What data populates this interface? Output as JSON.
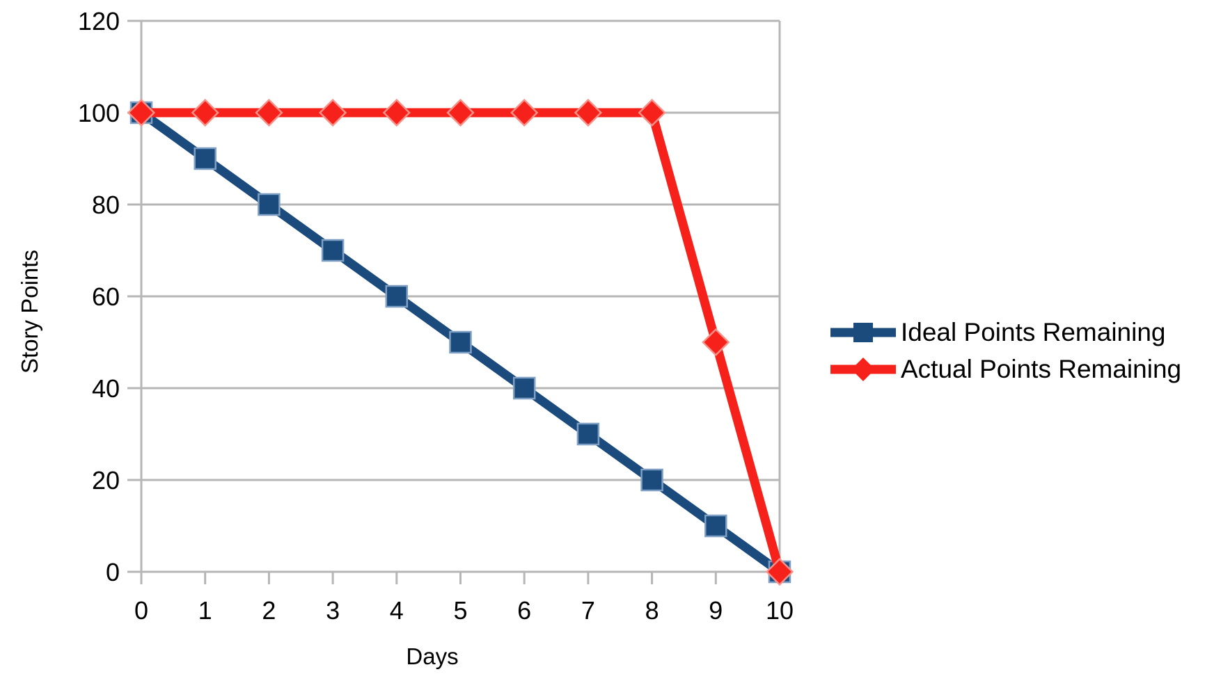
{
  "chart_data": {
    "type": "line",
    "title": "",
    "xlabel": "Days",
    "ylabel": "Story Points",
    "x": [
      0,
      1,
      2,
      3,
      4,
      5,
      6,
      7,
      8,
      9,
      10
    ],
    "series": [
      {
        "name": "Ideal Points Remaining",
        "values": [
          100,
          90,
          80,
          70,
          60,
          50,
          40,
          30,
          20,
          10,
          0
        ],
        "color": "#1B4A7D",
        "marker": "square",
        "marker_halo": "#7FA0C4"
      },
      {
        "name": "Actual Points Remaining",
        "values": [
          100,
          100,
          100,
          100,
          100,
          100,
          100,
          100,
          100,
          50,
          0
        ],
        "color": "#F5211A",
        "marker": "diamond",
        "marker_halo": "#FA9188"
      }
    ],
    "xlim": [
      0,
      10
    ],
    "ylim": [
      0,
      120
    ],
    "xtick_step": 1,
    "ytick_step": 20,
    "grid": "horizontal",
    "grid_color": "#B6B6B6",
    "axis_color": "#B6B6B6",
    "text_color": "#000000",
    "legend_position": "right"
  }
}
